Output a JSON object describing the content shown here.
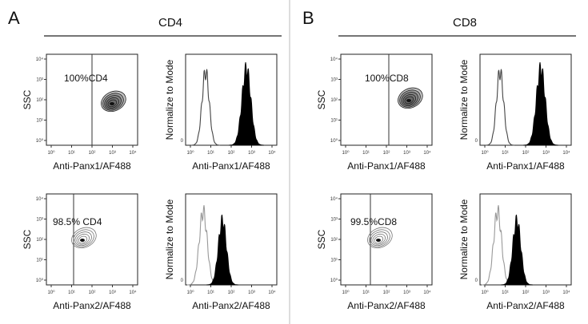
{
  "panels": [
    {
      "letter": "A",
      "title": "CD4",
      "rows": [
        {
          "dot": {
            "y_label": "SSC",
            "x_label": "Anti-Panx1/AF488",
            "gate_label": "100%CD4"
          },
          "histogram": {
            "y_label": "Normalize to Mode",
            "x_label": "Anti-Panx1/AF488"
          }
        },
        {
          "dot": {
            "y_label": "SSC",
            "x_label": "Anti-Panx2/AF488",
            "gate_label": "98.5% CD4"
          },
          "histogram": {
            "y_label": "Normalize to Mode",
            "x_label": "Anti-Panx2/AF488"
          }
        }
      ]
    },
    {
      "letter": "B",
      "title": "CD8",
      "rows": [
        {
          "dot": {
            "y_label": "SSC",
            "x_label": "Anti-Panx1/AF488",
            "gate_label": "100%CD8"
          },
          "histogram": {
            "y_label": "Normalize to Mode",
            "x_label": "Anti-Panx1/AF488"
          }
        },
        {
          "dot": {
            "y_label": "SSC",
            "x_label": "Anti-Panx2/AF488",
            "gate_label": "99.5%CD8"
          },
          "histogram": {
            "y_label": "Normalize to Mode",
            "x_label": "Anti-Panx2/AF488"
          }
        }
      ]
    }
  ],
  "axis_ticks": [
    "10⁰",
    "10¹",
    "10²",
    "10³",
    "10⁴"
  ],
  "histogram_y_tick": "0"
}
